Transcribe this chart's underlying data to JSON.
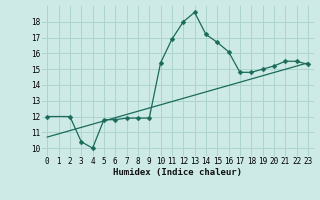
{
  "title": "",
  "xlabel": "Humidex (Indice chaleur)",
  "ylabel": "",
  "background_color": "#ceeae7",
  "grid_color": "#aed4d0",
  "line_color": "#1a6b5a",
  "xlim": [
    -0.5,
    23.5
  ],
  "ylim": [
    9.5,
    19.0
  ],
  "yticks": [
    10,
    11,
    12,
    13,
    14,
    15,
    16,
    17,
    18
  ],
  "xticks": [
    0,
    1,
    2,
    3,
    4,
    5,
    6,
    7,
    8,
    9,
    10,
    11,
    12,
    13,
    14,
    15,
    16,
    17,
    18,
    19,
    20,
    21,
    22,
    23
  ],
  "line1_x": [
    0,
    2,
    3,
    4,
    5,
    6,
    7,
    8,
    9,
    10,
    11,
    12,
    13,
    14,
    15,
    16,
    17,
    18,
    19,
    20,
    21,
    22,
    23
  ],
  "line1_y": [
    12.0,
    12.0,
    10.4,
    10.0,
    11.8,
    11.8,
    11.9,
    11.9,
    11.9,
    15.4,
    16.9,
    18.0,
    18.6,
    17.2,
    16.7,
    16.1,
    14.8,
    14.8,
    15.0,
    15.2,
    15.5,
    15.5,
    15.3
  ],
  "line2_x": [
    0,
    23
  ],
  "line2_y": [
    10.7,
    15.4
  ],
  "marker_size": 2.5,
  "linewidth": 0.9,
  "tick_fontsize": 5.5,
  "xlabel_fontsize": 6.5
}
